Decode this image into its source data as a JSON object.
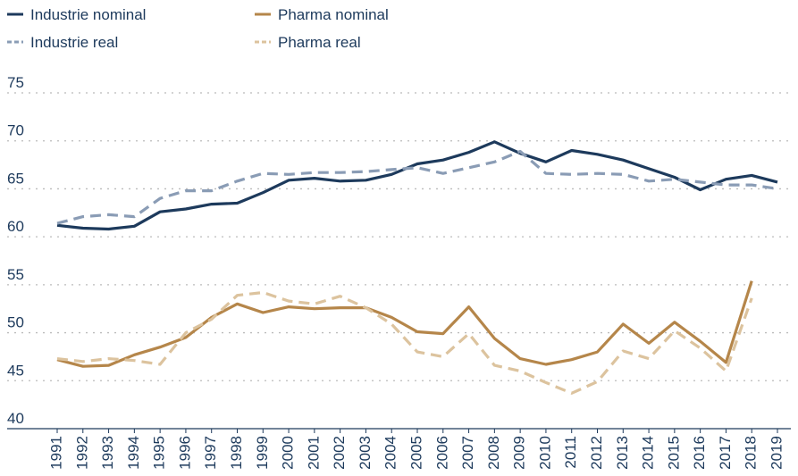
{
  "chart_data": {
    "type": "line",
    "categories": [
      "1991",
      "1992",
      "1993",
      "1994",
      "1995",
      "1996",
      "1997",
      "1998",
      "1999",
      "2000",
      "2001",
      "2002",
      "2003",
      "2004",
      "2005",
      "2006",
      "2007",
      "2008",
      "2009",
      "2010",
      "2011",
      "2012",
      "2013",
      "2014",
      "2015",
      "2016",
      "2017",
      "2018",
      "2019"
    ],
    "series": [
      {
        "name": "Industrie nominal",
        "color": "#1d3a5c",
        "style": "solid",
        "values": [
          61.2,
          60.9,
          60.8,
          61.1,
          62.6,
          62.9,
          63.4,
          63.5,
          64.6,
          65.9,
          66.1,
          65.8,
          65.9,
          66.5,
          67.6,
          68.0,
          68.8,
          69.9,
          68.7,
          67.8,
          69.0,
          68.6,
          68.0,
          67.1,
          66.2,
          64.9,
          66.0,
          66.4,
          65.7
        ]
      },
      {
        "name": "Industrie real",
        "color": "#8a9cb5",
        "style": "dashed",
        "values": [
          61.4,
          62.1,
          62.3,
          62.1,
          64.0,
          64.8,
          64.8,
          65.8,
          66.6,
          66.5,
          66.7,
          66.7,
          66.8,
          67.0,
          67.2,
          66.6,
          67.2,
          67.8,
          68.9,
          66.6,
          66.5,
          66.6,
          66.5,
          65.8,
          66.0,
          65.7,
          65.4,
          65.4,
          65.0
        ]
      },
      {
        "name": "Pharma nominal",
        "color": "#b5864a",
        "style": "solid",
        "values": [
          47.2,
          46.5,
          46.6,
          47.7,
          48.5,
          49.5,
          51.6,
          53.0,
          52.1,
          52.7,
          52.5,
          52.6,
          52.6,
          51.6,
          50.1,
          49.9,
          52.7,
          49.4,
          47.3,
          46.7,
          47.2,
          48.0,
          50.9,
          48.9,
          51.1,
          49.1,
          46.9,
          55.4,
          null
        ]
      },
      {
        "name": "Pharma real",
        "color": "#dcc39e",
        "style": "dashed",
        "values": [
          47.3,
          47.0,
          47.3,
          47.1,
          46.7,
          50.0,
          51.4,
          53.9,
          54.2,
          53.3,
          53.0,
          53.8,
          52.6,
          50.9,
          48.0,
          47.5,
          49.9,
          46.6,
          46.0,
          44.8,
          43.7,
          44.9,
          48.1,
          47.3,
          50.2,
          48.4,
          46.0,
          53.6,
          null
        ]
      }
    ],
    "ylim": [
      40,
      75
    ],
    "yticks": [
      40,
      45,
      50,
      55,
      60,
      65,
      70,
      75
    ],
    "grid": true,
    "legend": "top-left"
  }
}
